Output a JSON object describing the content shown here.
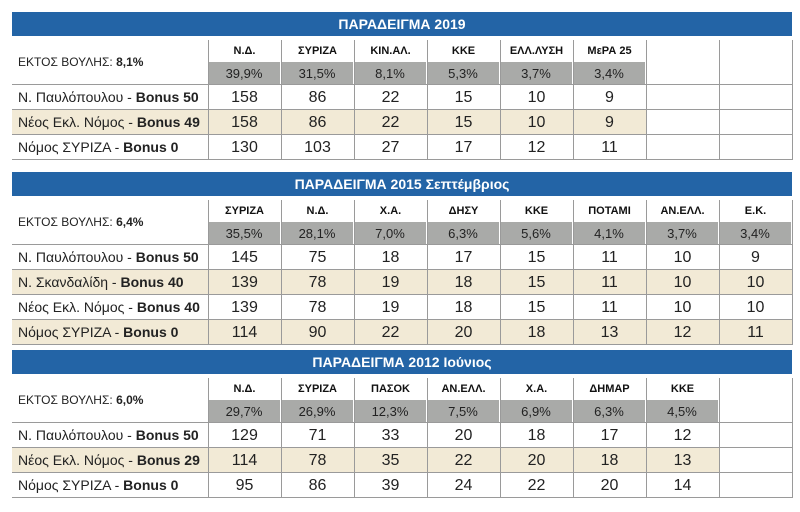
{
  "sections": [
    {
      "title": "ΠΑΡΑΔΕΙΓΜΑ 2019",
      "outside_label": "ΕΚΤΟΣ ΒΟΥΛΗΣ:",
      "outside_value": "8,1%",
      "parties": [
        "Ν.Δ.",
        "ΣΥΡΙΖΑ",
        "ΚΙΝ.ΑΛ.",
        "ΚΚΕ",
        "ΕΛΛ.ΛΥΣΗ",
        "ΜεΡΑ 25"
      ],
      "percents": [
        "39,9%",
        "31,5%",
        "8,1%",
        "5,3%",
        "3,7%",
        "3,4%"
      ],
      "rows": [
        {
          "name": "Ν. Παυλόπουλου -",
          "bonus": "Bonus 50",
          "values": [
            158,
            86,
            22,
            15,
            10,
            9
          ]
        },
        {
          "name": "Νέος Εκλ. Νόμος -",
          "bonus": "Bonus 49",
          "values": [
            158,
            86,
            22,
            15,
            10,
            9
          ]
        },
        {
          "name": "Νόμος ΣΥΡΙΖΑ -",
          "bonus": "Bonus 0",
          "values": [
            130,
            103,
            27,
            17,
            12,
            11
          ]
        }
      ]
    },
    {
      "title": "ΠΑΡΑΔΕΙΓΜΑ 2015 Σεπτέμβριος",
      "outside_label": "ΕΚΤΟΣ ΒΟΥΛΗΣ:",
      "outside_value": "6,4%",
      "parties": [
        "ΣΥΡΙΖΑ",
        "Ν.Δ.",
        "Χ.Α.",
        "ΔΗΣΥ",
        "ΚΚΕ",
        "ΠΟΤΑΜΙ",
        "ΑΝ.ΕΛΛ.",
        "Ε.Κ."
      ],
      "percents": [
        "35,5%",
        "28,1%",
        "7,0%",
        "6,3%",
        "5,6%",
        "4,1%",
        "3,7%",
        "3,4%"
      ],
      "rows": [
        {
          "name": "Ν. Παυλόπουλου -",
          "bonus": "Bonus 50",
          "values": [
            145,
            75,
            18,
            17,
            15,
            11,
            10,
            9
          ]
        },
        {
          "name": "Ν. Σκανδαλίδη -",
          "bonus": "Bonus 40",
          "values": [
            139,
            78,
            19,
            18,
            15,
            11,
            10,
            10
          ]
        },
        {
          "name": "Νέος Εκλ. Νόμος -",
          "bonus": "Bonus 40",
          "values": [
            139,
            78,
            19,
            18,
            15,
            11,
            10,
            10
          ]
        },
        {
          "name": "Νόμος ΣΥΡΙΖΑ -",
          "bonus": "Bonus 0",
          "values": [
            114,
            90,
            22,
            20,
            18,
            13,
            12,
            11
          ]
        }
      ]
    },
    {
      "title": "ΠΑΡΑΔΕΙΓΜΑ 2012 Ιούνιος",
      "outside_label": "ΕΚΤΟΣ ΒΟΥΛΗΣ:",
      "outside_value": "6,0%",
      "parties": [
        "Ν.Δ.",
        "ΣΥΡΙΖΑ",
        "ΠΑΣΟΚ",
        "ΑΝ.ΕΛΛ.",
        "Χ.Α.",
        "ΔΗΜΑΡ",
        "ΚΚΕ"
      ],
      "percents": [
        "29,7%",
        "26,9%",
        "12,3%",
        "7,5%",
        "6,9%",
        "6,3%",
        "4,5%"
      ],
      "rows": [
        {
          "name": "Ν. Παυλόπουλου -",
          "bonus": "Bonus 50",
          "values": [
            129,
            71,
            33,
            20,
            18,
            17,
            12
          ]
        },
        {
          "name": "Νέος Εκλ. Νόμος -",
          "bonus": "Bonus 29",
          "values": [
            114,
            78,
            35,
            22,
            20,
            18,
            13
          ]
        },
        {
          "name": "Νόμος ΣΥΡΙΖΑ -",
          "bonus": "Bonus 0",
          "values": [
            95,
            86,
            39,
            24,
            22,
            20,
            14
          ]
        }
      ]
    }
  ]
}
